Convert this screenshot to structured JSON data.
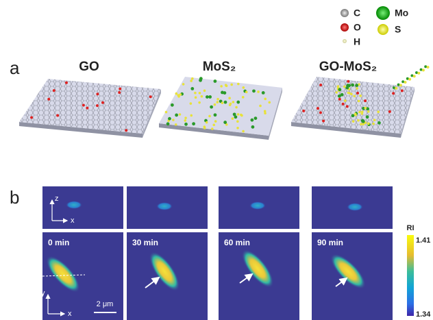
{
  "legend": [
    {
      "label": "C"
    },
    {
      "label": "O"
    },
    {
      "label": "H"
    },
    {
      "label": "Mo"
    },
    {
      "label": "S"
    }
  ],
  "panel_a": {
    "label": "a",
    "titles": [
      "GO",
      "MoS₂",
      "GO-MoS₂"
    ]
  },
  "panel_b": {
    "label": "b",
    "top_axes": {
      "vertical": "z",
      "horizontal": "x"
    },
    "bottom_axes": {
      "vertical": "y",
      "horizontal": "x"
    },
    "times": [
      "0 min",
      "30 min",
      "60 min",
      "90 min"
    ],
    "scale_bar": "2 μm",
    "colorbar": {
      "title": "RI",
      "max": 1.41,
      "min": 1.34
    }
  }
}
